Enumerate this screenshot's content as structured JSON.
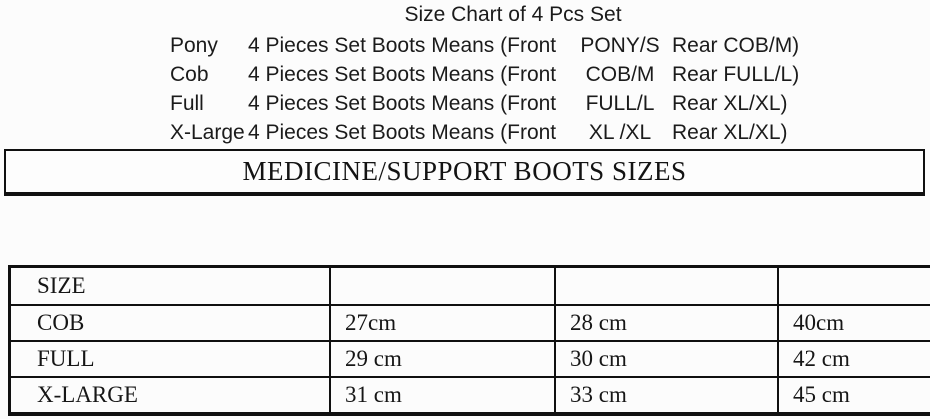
{
  "document": {
    "title": "Size Chart of 4 Pcs Set"
  },
  "set_rows": [
    {
      "label": "Pony",
      "means": "4 Pieces Set Boots Means (Front",
      "front": "PONY/S",
      "rear": "Rear COB/M)"
    },
    {
      "label": "Cob",
      "means": "4 Pieces Set Boots Means (Front",
      "front": "COB/M",
      "rear": "Rear FULL/L)"
    },
    {
      "label": "Full",
      "means": "4 Pieces Set Boots Means (Front",
      "front": "FULL/L",
      "rear": "Rear XL/XL)"
    },
    {
      "label": "X-Large",
      "means": "4 Pieces Set Boots Means (Front",
      "front": "XL /XL",
      "rear": "Rear XL/XL)"
    }
  ],
  "banner": {
    "title": "MEDICINE/SUPPORT BOOTS SIZES"
  },
  "size_table": {
    "header": [
      "SIZE",
      "",
      "",
      ""
    ],
    "rows": [
      [
        "COB",
        "27cm",
        "28 cm",
        "40cm"
      ],
      [
        "FULL",
        "29 cm",
        "30 cm",
        "42 cm"
      ],
      [
        "X-LARGE",
        "31 cm",
        "33 cm",
        "45 cm"
      ]
    ]
  },
  "colors": {
    "background": "#fcfcfc",
    "border": "#101010",
    "text": "#1b1b1b"
  }
}
